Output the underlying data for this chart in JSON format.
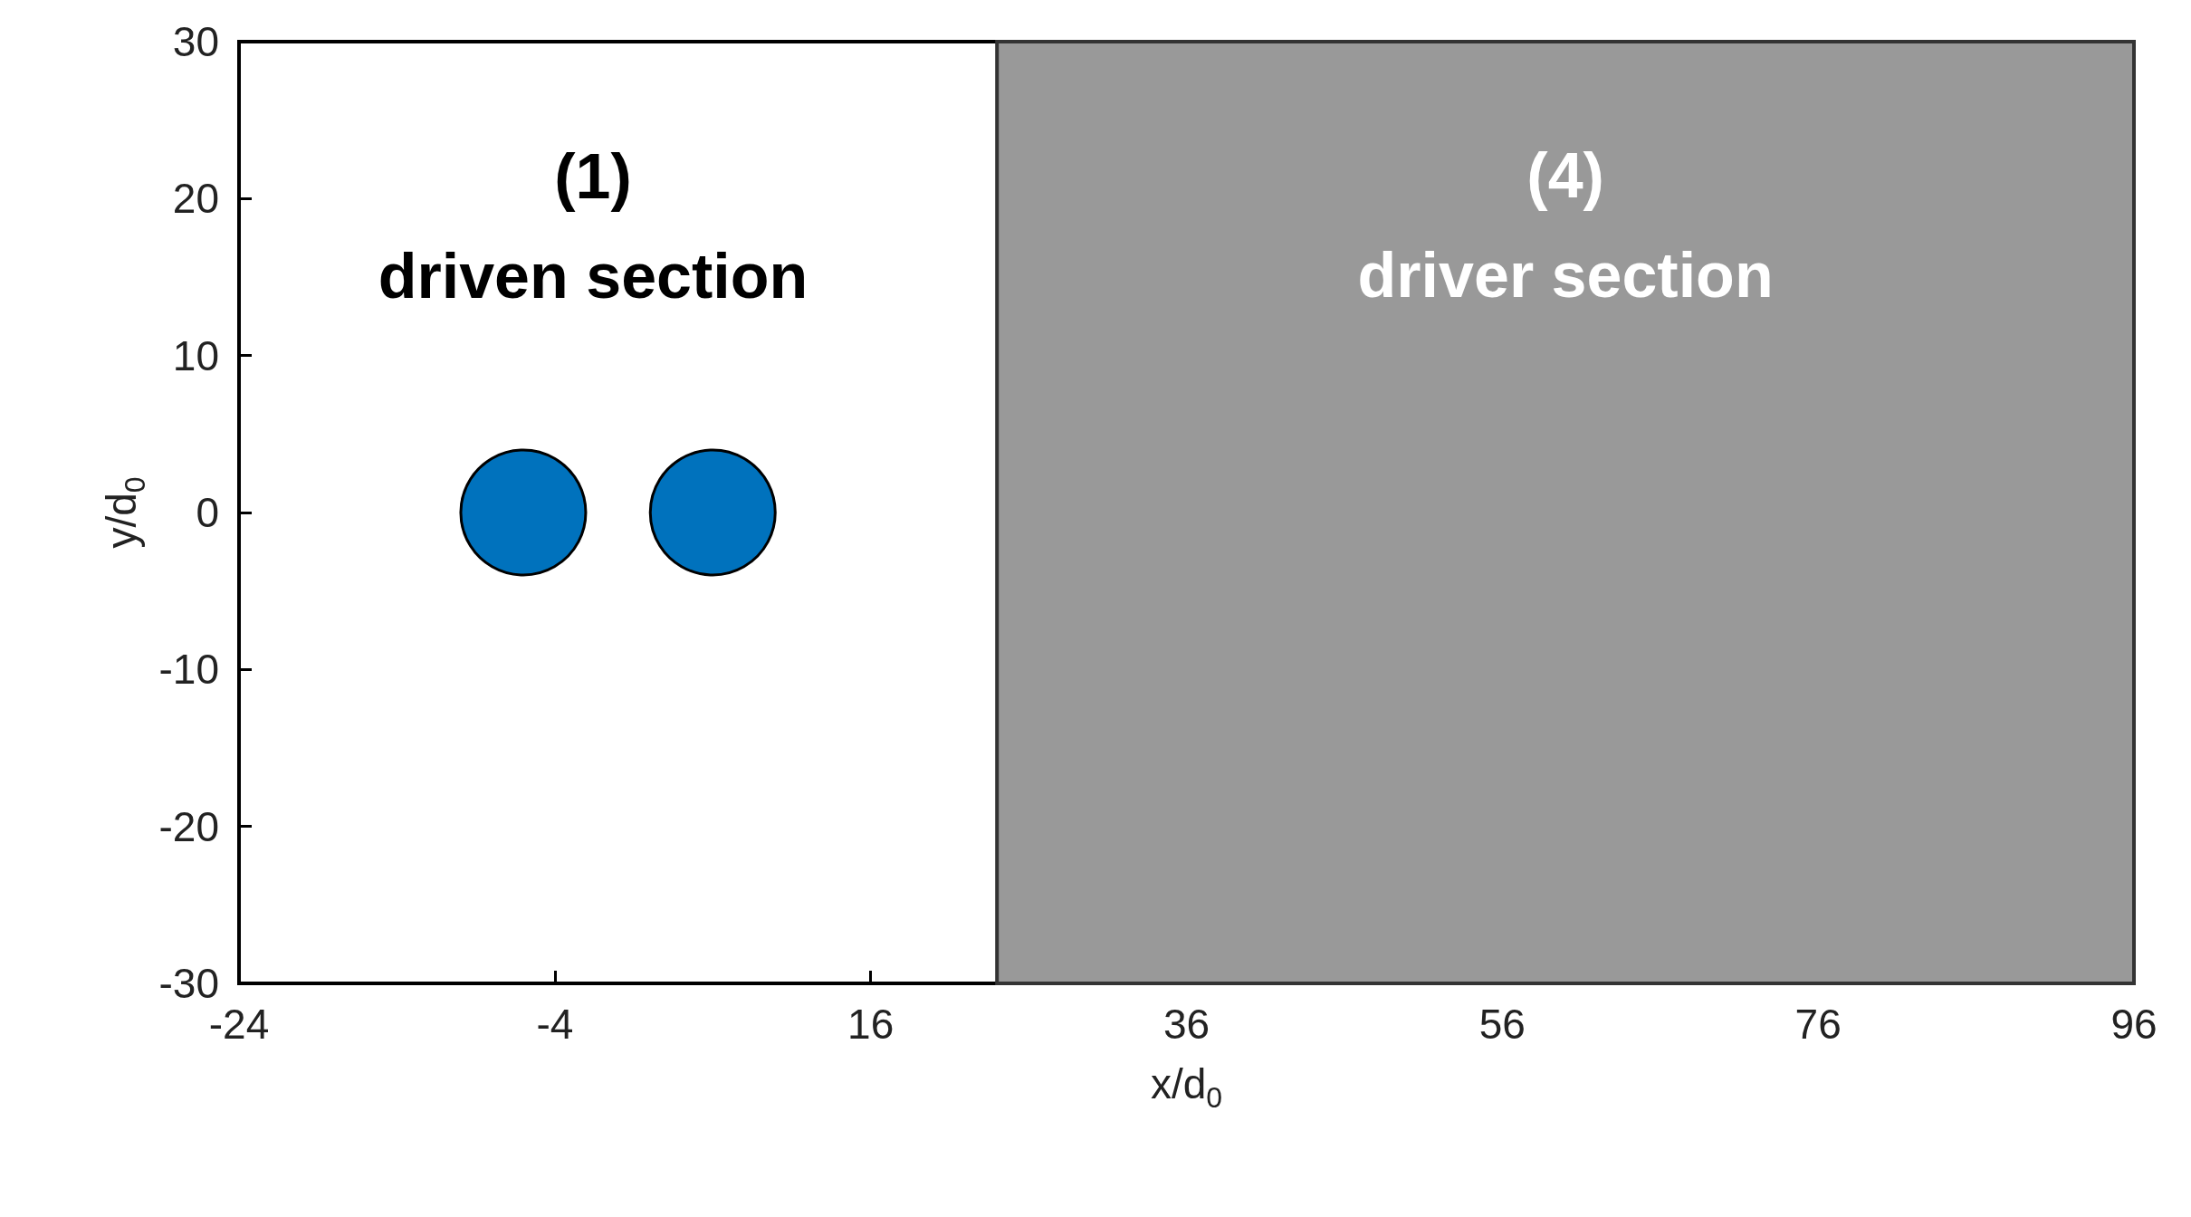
{
  "chart_data": {
    "type": "scatter",
    "xlabel": "x/d$_{0}$",
    "ylabel": "y/d$_{0}$",
    "x": [
      -6,
      6
    ],
    "values": [
      0,
      0
    ],
    "color": "#0072bd",
    "marker": "circle",
    "xlim": [
      -24,
      96
    ],
    "xticks": [
      -24,
      -4,
      16,
      36,
      56,
      76,
      96
    ],
    "ylim": [
      -30,
      30
    ],
    "yticks": [
      -30,
      -20,
      -10,
      0,
      10,
      20,
      30
    ],
    "bands": [
      {
        "axis": "x",
        "from": 24,
        "to": 96,
        "label": "(4)\ndriver section",
        "color": "#999999"
      }
    ],
    "annotations": [
      "(1)\ndriven section"
    ]
  }
}
